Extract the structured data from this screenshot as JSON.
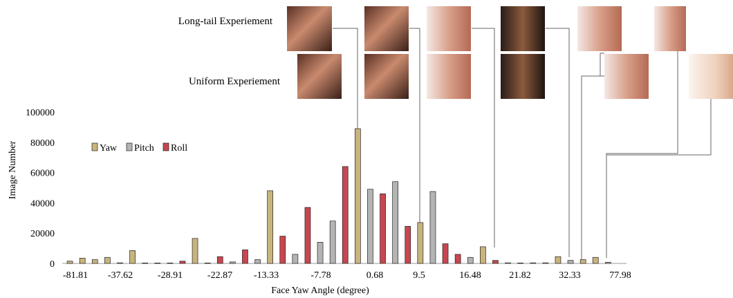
{
  "chart_data": {
    "type": "bar",
    "title": "",
    "xlabel": "Face Yaw Angle (degree)",
    "ylabel": "Image Number",
    "ylim": [
      0,
      100000
    ],
    "y_ticks": [
      "0",
      "20000",
      "40000",
      "60000",
      "80000",
      "100000"
    ],
    "x_tick_labels": [
      "-81.81",
      "-37.62",
      "-28.91",
      "-22.87",
      "-13.33",
      "-7.78",
      "0.68",
      "9.5",
      "16.48",
      "21.82",
      "32.33",
      "77.98"
    ],
    "legend": {
      "placement": "upper-left",
      "entries": [
        "Yaw",
        "Pitch",
        "Roll"
      ]
    },
    "series": [
      {
        "name": "Yaw",
        "color": "#c9b47d"
      },
      {
        "name": "Pitch",
        "color": "#b4b4b4"
      },
      {
        "name": "Roll",
        "color": "#c8464f"
      }
    ],
    "bars": [
      {
        "series": "Yaw",
        "value": 1500
      },
      {
        "series": "Yaw",
        "value": 3500
      },
      {
        "series": "Yaw",
        "value": 2500
      },
      {
        "series": "Yaw",
        "value": 4000
      },
      {
        "series": "Pitch",
        "value": 400
      },
      {
        "series": "Yaw",
        "value": 8500
      },
      {
        "series": "Pitch",
        "value": 300
      },
      {
        "series": "Pitch",
        "value": 300
      },
      {
        "series": "Pitch",
        "value": 300
      },
      {
        "series": "Roll",
        "value": 1500
      },
      {
        "series": "Yaw",
        "value": 16500
      },
      {
        "series": "Pitch",
        "value": 300
      },
      {
        "series": "Roll",
        "value": 4500
      },
      {
        "series": "Pitch",
        "value": 1000
      },
      {
        "series": "Roll",
        "value": 9000
      },
      {
        "series": "Pitch",
        "value": 2500
      },
      {
        "series": "Yaw",
        "value": 48000
      },
      {
        "series": "Roll",
        "value": 18000
      },
      {
        "series": "Pitch",
        "value": 6000
      },
      {
        "series": "Roll",
        "value": 37000
      },
      {
        "series": "Pitch",
        "value": 14000
      },
      {
        "series": "Pitch",
        "value": 28000
      },
      {
        "series": "Roll",
        "value": 64000
      },
      {
        "series": "Yaw",
        "value": 89000
      },
      {
        "series": "Pitch",
        "value": 49000
      },
      {
        "series": "Roll",
        "value": 46000
      },
      {
        "series": "Pitch",
        "value": 54000
      },
      {
        "series": "Roll",
        "value": 24500
      },
      {
        "series": "Yaw",
        "value": 27000
      },
      {
        "series": "Pitch",
        "value": 47500
      },
      {
        "series": "Roll",
        "value": 13000
      },
      {
        "series": "Roll",
        "value": 6000
      },
      {
        "series": "Pitch",
        "value": 4000
      },
      {
        "series": "Yaw",
        "value": 11000
      },
      {
        "series": "Roll",
        "value": 2000
      },
      {
        "series": "Pitch",
        "value": 400
      },
      {
        "series": "Pitch",
        "value": 300
      },
      {
        "series": "Pitch",
        "value": 400
      },
      {
        "series": "Pitch",
        "value": 400
      },
      {
        "series": "Yaw",
        "value": 4500
      },
      {
        "series": "Pitch",
        "value": 2000
      },
      {
        "series": "Yaw",
        "value": 2500
      },
      {
        "series": "Yaw",
        "value": 4000
      },
      {
        "series": "Pitch",
        "value": 800
      }
    ]
  },
  "experiments": {
    "long_tail_label": "Long-tail Experiement",
    "uniform_label": "Uniform Experiement"
  },
  "face_thumbnails": {
    "long_tail": [
      "face-thumbnail",
      "face-thumbnail",
      "face-thumbnail",
      "face-thumbnail",
      "face-thumbnail",
      "face-thumbnail"
    ],
    "uniform": [
      "face-thumbnail",
      "face-thumbnail",
      "face-thumbnail",
      "face-thumbnail",
      "face-thumbnail",
      "face-thumbnail"
    ]
  }
}
